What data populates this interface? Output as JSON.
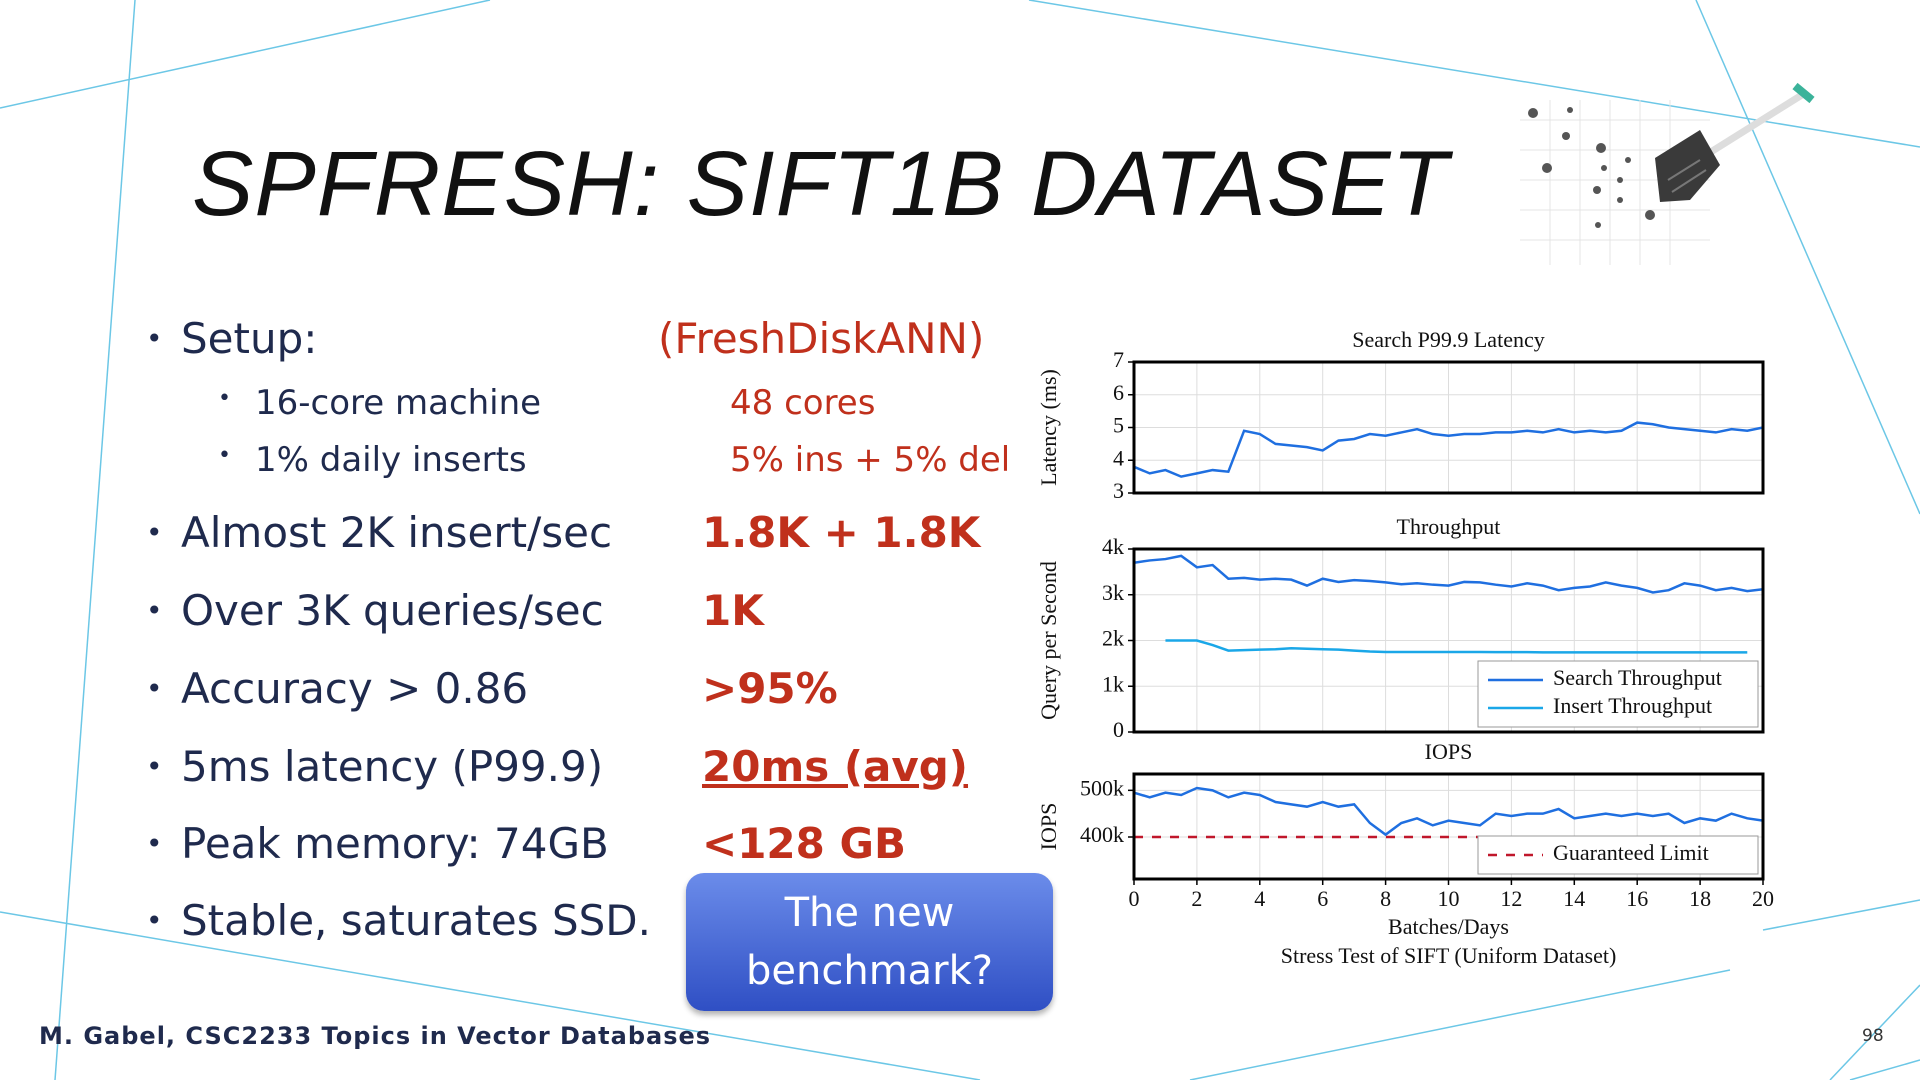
{
  "slide": {
    "title": "SPFRESH: SIFT1B DATASET",
    "bullets": [
      {
        "text": "Setup:",
        "level": 1
      },
      {
        "text": "16-core machine",
        "level": 2
      },
      {
        "text": "1% daily inserts",
        "level": 2
      },
      {
        "text": "Almost 2K insert/sec",
        "level": 1
      },
      {
        "text": "Over 3K queries/sec",
        "level": 1
      },
      {
        "text": "Accuracy > 0.86",
        "level": 1
      },
      {
        "text": "5ms latency (P99.9)",
        "level": 1
      },
      {
        "text": "Peak memory: 74GB",
        "level": 1
      },
      {
        "text": "Stable, saturates SSD.",
        "level": 1
      }
    ],
    "comparison": [
      {
        "text": "(FreshDiskANN)",
        "bold": false,
        "underline": false
      },
      {
        "text": "48 cores",
        "bold": false,
        "underline": false
      },
      {
        "text": "5% ins + 5% del",
        "bold": false,
        "underline": false
      },
      {
        "text": "1.8K + 1.8K",
        "bold": true,
        "underline": false
      },
      {
        "text": "1K",
        "bold": true,
        "underline": false
      },
      {
        "text": ">95%",
        "bold": true,
        "underline": false
      },
      {
        "text": "20ms (avg)",
        "bold": true,
        "underline": true
      },
      {
        "text": "<128 GB",
        "bold": true,
        "underline": false
      }
    ],
    "callout": "The new benchmark?",
    "footer": {
      "author": "M. Gabel, CSC2233 Topics in Vector Databases",
      "page": "98"
    }
  },
  "chart_data": [
    {
      "type": "line",
      "title": "Search P99.9 Latency",
      "ylabel": "Latency (ms)",
      "x": [
        0,
        0.5,
        1,
        1.5,
        2,
        2.5,
        3,
        3.5,
        4,
        4.5,
        5,
        5.5,
        6,
        6.5,
        7,
        7.5,
        8,
        8.5,
        9,
        9.5,
        10,
        10.5,
        11,
        11.5,
        12,
        12.5,
        13,
        13.5,
        14,
        14.5,
        15,
        15.5,
        16,
        16.5,
        17,
        17.5,
        18,
        18.5,
        19,
        19.5,
        20
      ],
      "series": [
        {
          "color": "#1f6fe0",
          "values": [
            3.8,
            3.6,
            3.7,
            3.5,
            3.6,
            3.7,
            3.65,
            4.9,
            4.8,
            4.5,
            4.45,
            4.4,
            4.3,
            4.6,
            4.65,
            4.8,
            4.75,
            4.85,
            4.95,
            4.8,
            4.75,
            4.8,
            4.8,
            4.85,
            4.85,
            4.9,
            4.85,
            4.95,
            4.85,
            4.9,
            4.85,
            4.9,
            5.15,
            5.1,
            5.0,
            4.95,
            4.9,
            4.85,
            4.95,
            4.9,
            5.0
          ]
        }
      ],
      "xlim": [
        0,
        20
      ],
      "ylim": [
        3,
        7
      ],
      "yticks": [
        3,
        4,
        5,
        6,
        7
      ],
      "grid": true
    },
    {
      "type": "line",
      "title": "Throughput",
      "ylabel": "Query per Second",
      "x": [
        0,
        0.5,
        1,
        1.5,
        2,
        2.5,
        3,
        3.5,
        4,
        4.5,
        5,
        5.5,
        6,
        6.5,
        7,
        7.5,
        8,
        8.5,
        9,
        9.5,
        10,
        10.5,
        11,
        11.5,
        12,
        12.5,
        13,
        13.5,
        14,
        14.5,
        15,
        15.5,
        16,
        16.5,
        17,
        17.5,
        18,
        18.5,
        19,
        19.5,
        20
      ],
      "series": [
        {
          "name": "Search Throughput",
          "color": "#1f6fe0",
          "values": [
            3700,
            3750,
            3780,
            3850,
            3600,
            3650,
            3350,
            3370,
            3330,
            3350,
            3330,
            3200,
            3350,
            3280,
            3320,
            3300,
            3270,
            3230,
            3250,
            3220,
            3200,
            3280,
            3270,
            3220,
            3180,
            3250,
            3200,
            3100,
            3150,
            3180,
            3270,
            3200,
            3150,
            3050,
            3100,
            3250,
            3200,
            3100,
            3150,
            3080,
            3120
          ]
        },
        {
          "name": "Insert Throughput",
          "color": "#1aa7e8",
          "values": [
            null,
            null,
            2000,
            2000,
            2000,
            1900,
            1780,
            1790,
            1800,
            1810,
            1830,
            1820,
            1810,
            1800,
            1780,
            1760,
            1750,
            1750,
            1750,
            1750,
            1750,
            1750,
            1750,
            1745,
            1745,
            1745,
            1740,
            1740,
            1740,
            1740,
            1740,
            1740,
            1740,
            1740,
            1740,
            1740,
            1740,
            1740,
            1740,
            1740,
            null
          ]
        }
      ],
      "xlim": [
        0,
        20
      ],
      "ylim": [
        0,
        4000
      ],
      "yticks": [
        0,
        {
          "value": 1000,
          "label": "1k"
        },
        {
          "value": 2000,
          "label": "2k"
        },
        {
          "value": 3000,
          "label": "3k"
        },
        {
          "value": 4000,
          "label": "4k"
        }
      ],
      "grid": true,
      "legend": "lower right"
    },
    {
      "type": "line",
      "title": "IOPS",
      "ylabel": "IOPS",
      "xlabel": "Batches/Days",
      "caption": "Stress Test of SIFT (Uniform Dataset)",
      "x": [
        0,
        0.5,
        1,
        1.5,
        2,
        2.5,
        3,
        3.5,
        4,
        4.5,
        5,
        5.5,
        6,
        6.5,
        7,
        7.5,
        8,
        8.5,
        9,
        9.5,
        10,
        10.5,
        11,
        11.5,
        12,
        12.5,
        13,
        13.5,
        14,
        14.5,
        15,
        15.5,
        16,
        16.5,
        17,
        17.5,
        18,
        18.5,
        19,
        19.5,
        20
      ],
      "series": [
        {
          "color": "#1f6fe0",
          "values": [
            495000,
            485000,
            495000,
            490000,
            505000,
            500000,
            485000,
            495000,
            490000,
            475000,
            470000,
            465000,
            475000,
            465000,
            470000,
            430000,
            405000,
            430000,
            440000,
            425000,
            435000,
            430000,
            425000,
            450000,
            445000,
            450000,
            450000,
            460000,
            440000,
            445000,
            450000,
            445000,
            450000,
            445000,
            450000,
            430000,
            440000,
            435000,
            450000,
            440000,
            435000
          ]
        }
      ],
      "reference_lines": [
        {
          "name": "Guaranteed Limit",
          "value": 400000,
          "color": "#c0172b"
        }
      ],
      "xlim": [
        0,
        20
      ],
      "ylim": [
        310000,
        535000
      ],
      "xticks": [
        0,
        2,
        4,
        6,
        8,
        10,
        12,
        14,
        16,
        18,
        20
      ],
      "yticks": [
        {
          "value": 400000,
          "label": "400k"
        },
        {
          "value": 500000,
          "label": "500k"
        }
      ],
      "grid": true,
      "legend": "lower right"
    }
  ]
}
